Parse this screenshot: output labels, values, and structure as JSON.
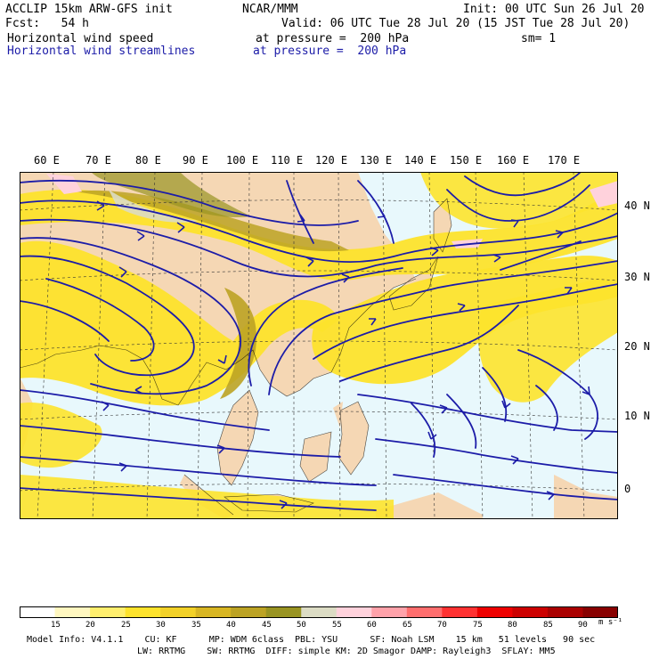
{
  "header": {
    "line1_left": "ACCLIP 15km ARW-GFS init",
    "line1_center": "NCAR/MMM",
    "line1_right": "Init: 00 UTC Sun 26 Jul 20",
    "fcst": "Fcst:   54 h",
    "valid": "Valid: 06 UTC Tue 28 Jul 20 (15 JST Tue 28 Jul 20)",
    "field1_name": "Horizontal wind speed",
    "field1_level": "at pressure =  200 hPa",
    "smooth": "sm= 1",
    "field2_name": "Horizontal wind streamlines",
    "field2_level": "at pressure =  200 hPa"
  },
  "map": {
    "lon_labels": [
      "60 E",
      "70 E",
      "80 E",
      "90 E",
      "100 E",
      "110 E",
      "120 E",
      "130 E",
      "140 E",
      "150 E",
      "160 E",
      "170 E"
    ],
    "lat_labels": [
      "40 N",
      "30 N",
      "20 N",
      "10 N",
      "0"
    ],
    "streamline_color": "#1c1ca8",
    "ocean_color": "#e8f8fc",
    "land_color": "#f5d7b4"
  },
  "colorbar": {
    "labels": [
      "15",
      "20",
      "25",
      "30",
      "35",
      "40",
      "45",
      "50",
      "55",
      "60",
      "65",
      "70",
      "75",
      "80",
      "85",
      "90"
    ],
    "unit": "m s⁻¹",
    "colors": [
      "#ffffff",
      "#fff7c0",
      "#ffef6e",
      "#fde32c",
      "#f2d128",
      "#d8b623",
      "#bca324",
      "#999422",
      "#dcdcc4",
      "#ffd2dc",
      "#ffa2aa",
      "#ff6e6e",
      "#ff3232",
      "#ee0000",
      "#cc0000",
      "#aa0000",
      "#880000"
    ]
  },
  "footer": {
    "line1": "Model Info: V4.1.1    CU: KF      MP: WDM 6class  PBL: YSU      SF: Noah LSM    15 km   51 levels   90 sec",
    "line2": "LW: RRTMG    SW: RRTMG  DIFF: simple KM: 2D Smagor DAMP: Rayleigh3  SFLAY: MM5"
  }
}
